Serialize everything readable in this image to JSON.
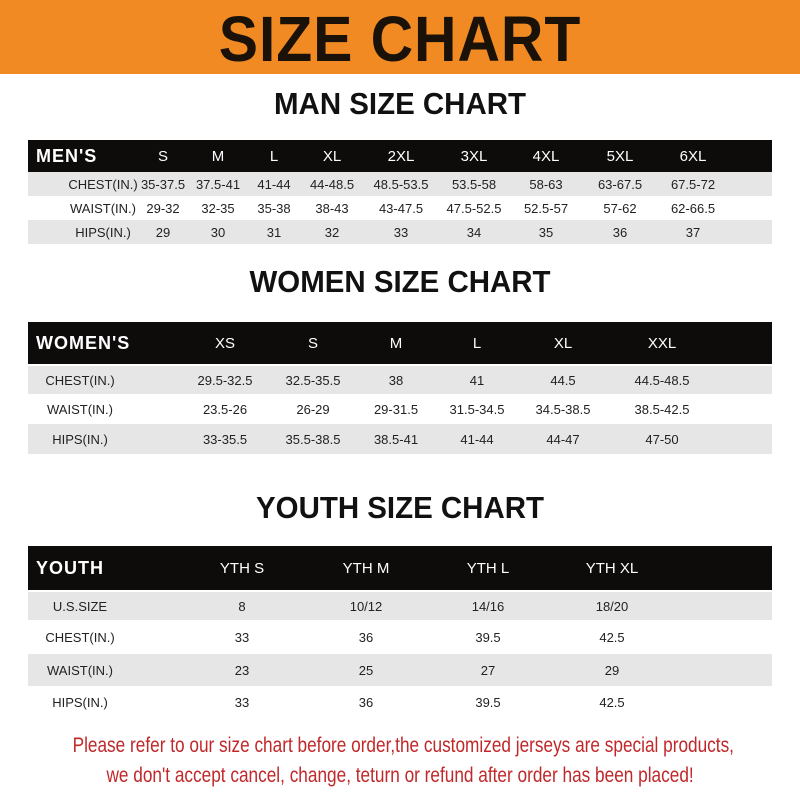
{
  "banner": {
    "title": "SIZE CHART",
    "color": "#f18a22"
  },
  "men": {
    "title": "MAN SIZE CHART",
    "header": [
      "MEN'S",
      "S",
      "M",
      "L",
      "XL",
      "2XL",
      "3XL",
      "4XL",
      "5XL",
      "6XL"
    ],
    "rows": [
      [
        "CHEST(IN.)",
        "35-37.5",
        "37.5-41",
        "41-44",
        "44-48.5",
        "48.5-53.5",
        "53.5-58",
        "58-63",
        "63-67.5",
        "67.5-72"
      ],
      [
        "WAIST(IN.)",
        "29-32",
        "32-35",
        "35-38",
        "38-43",
        "43-47.5",
        "47.5-52.5",
        "52.5-57",
        "57-62",
        "62-66.5"
      ],
      [
        "HIPS(IN.)",
        "29",
        "30",
        "31",
        "32",
        "33",
        "34",
        "35",
        "36",
        "37"
      ]
    ]
  },
  "women": {
    "title": "WOMEN SIZE CHART",
    "header": [
      "WOMEN'S",
      "XS",
      "S",
      "M",
      "L",
      "XL",
      "XXL"
    ],
    "rows": [
      [
        "CHEST(IN.)",
        "29.5-32.5",
        "32.5-35.5",
        "38",
        "41",
        "44.5",
        "44.5-48.5"
      ],
      [
        "WAIST(IN.)",
        "23.5-26",
        "26-29",
        "29-31.5",
        "31.5-34.5",
        "34.5-38.5",
        "38.5-42.5"
      ],
      [
        "HIPS(IN.)",
        "33-35.5",
        "35.5-38.5",
        "38.5-41",
        "41-44",
        "44-47",
        "47-50"
      ]
    ]
  },
  "youth": {
    "title": "YOUTH SIZE CHART",
    "header": [
      "YOUTH",
      "YTH S",
      "YTH M",
      "YTH L",
      "YTH XL"
    ],
    "rows": [
      [
        "U.S.SIZE",
        "8",
        "10/12",
        "14/16",
        "18/20"
      ],
      [
        "CHEST(IN.)",
        "33",
        "36",
        "39.5",
        "42.5"
      ],
      [
        "WAIST(IN.)",
        "23",
        "25",
        "27",
        "29"
      ],
      [
        "HIPS(IN.)",
        "33",
        "36",
        "39.5",
        "42.5"
      ]
    ]
  },
  "footer": {
    "line1": "Please refer to our size chart before order,the customized jerseys are special products,",
    "line2": "we don't accept cancel, change, teturn or refund after order has been placed!",
    "color": "#c0282a"
  }
}
